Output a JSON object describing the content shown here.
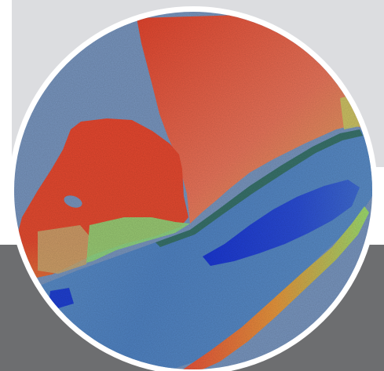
{
  "image": {
    "kind": "bathymetric relief map in a circular frame",
    "colors": {
      "background_top": "#dcdde0",
      "background_bottom": "#6d6e70",
      "ring": "#ffffff",
      "water_background": "#7895be",
      "shallow_red": "#e44a2f",
      "mid_orange": "#e8845a",
      "transition_green": "#8fd67a",
      "slope_yellow": "#d4c86a",
      "channel_blue": "#4f84c4",
      "deep_blue": "#1f3fd0",
      "sand_tan": "#c8a870"
    }
  }
}
